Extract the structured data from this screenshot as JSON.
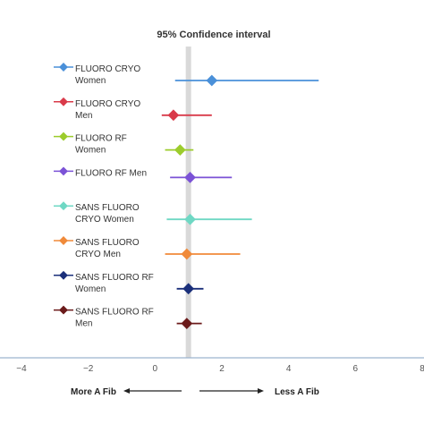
{
  "chart_data": {
    "type": "scatter",
    "title": "95% Confidence interval",
    "xlim": [
      -4,
      8
    ],
    "xticks": [
      "−4",
      "−2",
      "0",
      "2",
      "4",
      "6",
      "8"
    ],
    "reference_line_x": 1,
    "series": [
      {
        "name_lines": [
          "FLUORO CRYO",
          "Women"
        ],
        "estimate": 1.7,
        "ci": [
          0.6,
          4.9
        ],
        "color": "#4a90d9"
      },
      {
        "name_lines": [
          "FLUORO CRYO",
          "Men"
        ],
        "estimate": 0.55,
        "ci": [
          0.2,
          1.7
        ],
        "color": "#d93a4a"
      },
      {
        "name_lines": [
          "FLUORO RF",
          "Women"
        ],
        "estimate": 0.75,
        "ci": [
          0.3,
          1.15
        ],
        "color": "#9ccc2c"
      },
      {
        "name_lines": [
          "FLUORO RF Men"
        ],
        "estimate": 1.05,
        "ci": [
          0.45,
          2.3
        ],
        "color": "#7b52d6"
      },
      {
        "name_lines": [
          "SANS FLUORO",
          "CRYO Women"
        ],
        "estimate": 1.05,
        "ci": [
          0.35,
          2.9
        ],
        "color": "#6fd8c4"
      },
      {
        "name_lines": [
          "SANS FLUORO",
          "CRYO Men"
        ],
        "estimate": 0.95,
        "ci": [
          0.3,
          2.55
        ],
        "color": "#f08a3a"
      },
      {
        "name_lines": [
          "SANS FLUORO RF",
          "Women"
        ],
        "estimate": 1.0,
        "ci": [
          0.65,
          1.45
        ],
        "color": "#1a2f7a"
      },
      {
        "name_lines": [
          "SANS FLUORO RF",
          "Men"
        ],
        "estimate": 0.95,
        "ci": [
          0.65,
          1.4
        ],
        "color": "#6b1a1a"
      }
    ],
    "direction_left_label": "More A Fib",
    "direction_right_label": "Less A Fib"
  }
}
